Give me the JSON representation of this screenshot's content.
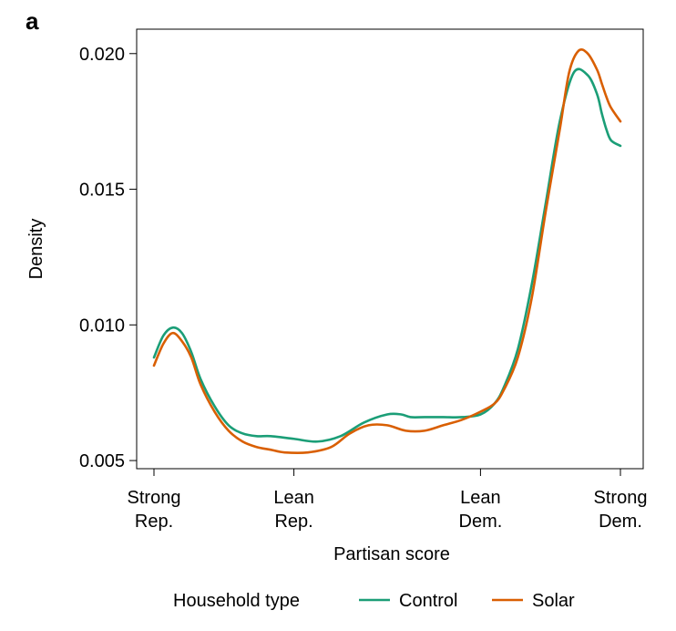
{
  "panel_label": "a",
  "chart_data": {
    "type": "line",
    "xlabel": "Partisan score",
    "ylabel": "Density",
    "xlim": [
      0,
      100
    ],
    "ylim": [
      0.0047,
      0.0209
    ],
    "grid": false,
    "y_ticks": [
      {
        "value": 0.005,
        "label": "0.005"
      },
      {
        "value": 0.01,
        "label": "0.010"
      },
      {
        "value": 0.015,
        "label": "0.015"
      },
      {
        "value": 0.02,
        "label": "0.020"
      }
    ],
    "x_ticks": [
      {
        "value": 0,
        "lines": [
          "Strong",
          "Rep."
        ]
      },
      {
        "value": 30,
        "lines": [
          "Lean",
          "Rep."
        ]
      },
      {
        "value": 70,
        "lines": [
          "Lean",
          "Dem."
        ]
      },
      {
        "value": 100,
        "lines": [
          "Strong",
          "Dem."
        ]
      }
    ],
    "legend": {
      "title": "Household type",
      "placement": "bottom"
    },
    "series": [
      {
        "name": "Control",
        "color": "#1b9e77",
        "x": [
          0,
          2,
          4,
          6,
          8,
          10,
          13,
          16,
          19,
          22,
          25,
          30,
          35,
          40,
          45,
          50,
          53,
          55,
          58,
          62,
          66,
          70,
          73,
          75,
          78,
          81,
          84,
          87,
          90,
          93,
          95,
          96,
          97,
          98,
          100
        ],
        "y": [
          0.0088,
          0.0096,
          0.0099,
          0.0097,
          0.009,
          0.008,
          0.007,
          0.0063,
          0.006,
          0.0059,
          0.0059,
          0.0058,
          0.0057,
          0.0059,
          0.0064,
          0.0067,
          0.0067,
          0.0066,
          0.0066,
          0.0066,
          0.0066,
          0.0067,
          0.0071,
          0.0077,
          0.0091,
          0.0115,
          0.0145,
          0.0175,
          0.0193,
          0.0192,
          0.0185,
          0.0178,
          0.0172,
          0.0168,
          0.0166
        ]
      },
      {
        "name": "Solar",
        "color": "#d95f02",
        "x": [
          0,
          2,
          4,
          6,
          8,
          10,
          13,
          16,
          19,
          22,
          25,
          28,
          33,
          38,
          42,
          46,
          50,
          54,
          58,
          62,
          66,
          70,
          73,
          75,
          78,
          81,
          84,
          87,
          89,
          91,
          93,
          95,
          96,
          97,
          98,
          100
        ],
        "y": [
          0.0085,
          0.0093,
          0.0097,
          0.0094,
          0.0088,
          0.0078,
          0.0068,
          0.0061,
          0.0057,
          0.0055,
          0.0054,
          0.0053,
          0.0053,
          0.0055,
          0.006,
          0.0063,
          0.0063,
          0.0061,
          0.0061,
          0.0063,
          0.0065,
          0.0068,
          0.0071,
          0.0076,
          0.0088,
          0.011,
          0.0142,
          0.0172,
          0.0193,
          0.0201,
          0.02,
          0.0194,
          0.0189,
          0.0184,
          0.018,
          0.0175
        ]
      }
    ]
  }
}
